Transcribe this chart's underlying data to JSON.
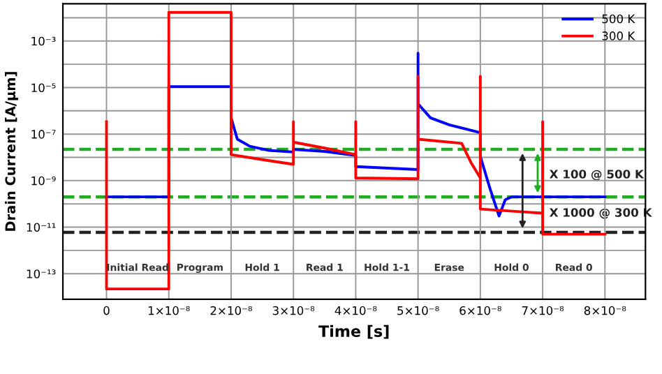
{
  "chart_data": {
    "type": "line",
    "xlabel": "Time [s]",
    "ylabel": "Drain Current [A/μm]",
    "log": "y",
    "xlim": [
      -7e-09,
      8.65e-08
    ],
    "ylim": [
      8e-15,
      0.04
    ],
    "xticks": [
      {
        "value": 0,
        "label": "0"
      },
      {
        "value": 1e-08,
        "label": "1×10⁻⁸"
      },
      {
        "value": 2e-08,
        "label": "2×10⁻⁸"
      },
      {
        "value": 3e-08,
        "label": "3×10⁻⁸"
      },
      {
        "value": 4e-08,
        "label": "4×10⁻⁸"
      },
      {
        "value": 5e-08,
        "label": "5×10⁻⁸"
      },
      {
        "value": 6e-08,
        "label": "6×10⁻⁸"
      },
      {
        "value": 7e-08,
        "label": "7×10⁻⁸"
      },
      {
        "value": 8e-08,
        "label": "8×10⁻⁸"
      }
    ],
    "yticks": [
      {
        "value": 1e-13,
        "label": "10⁻¹³"
      },
      {
        "value": 1e-12,
        "label": null
      },
      {
        "value": 1e-11,
        "label": "10⁻¹¹"
      },
      {
        "value": 1e-10,
        "label": null
      },
      {
        "value": 1e-09,
        "label": "10⁻⁹"
      },
      {
        "value": 1e-08,
        "label": null
      },
      {
        "value": 1e-07,
        "label": "10⁻⁷"
      },
      {
        "value": 1e-06,
        "label": null
      },
      {
        "value": 1e-05,
        "label": "10⁻⁵"
      },
      {
        "value": 0.0001,
        "label": null
      },
      {
        "value": 0.001,
        "label": "10⁻³"
      },
      {
        "value": 0.01,
        "label": null
      }
    ],
    "grid": true,
    "legend": "top right",
    "line_style": "solid",
    "series": [
      {
        "name": "500 K",
        "color": "#0000ff",
        "x": [
          0,
          1e-12,
          1e-08,
          1.0001e-08,
          2e-08,
          2.0001e-08,
          2.1e-08,
          2.3e-08,
          2.6e-08,
          3e-08,
          3.0001e-08,
          3.5e-08,
          4e-08,
          4.0001e-08,
          5e-08,
          5.0001e-08,
          5.0002e-08,
          5.2e-08,
          5.5e-08,
          6e-08,
          6.0001e-08,
          6.0002e-08,
          6.15e-08,
          6.3e-08,
          6.4e-08,
          6.5e-08,
          7e-08,
          8e-08
        ],
        "values": [
          2e-10,
          2e-10,
          2e-10,
          1.1e-05,
          1.1e-05,
          5e-07,
          6e-08,
          3e-08,
          2e-08,
          1.7e-08,
          2.2e-08,
          1.8e-08,
          1.2e-08,
          4e-09,
          3e-09,
          0.0003,
          2e-06,
          5e-07,
          2.5e-07,
          1.15e-07,
          1.1e-07,
          1.1e-08,
          5e-10,
          3e-11,
          1.5e-10,
          2e-10,
          2e-10,
          2e-10
        ]
      },
      {
        "name": "300 K",
        "color": "#ff0000",
        "x": [
          0,
          1e-12,
          1e-08,
          1.0001e-08,
          2e-08,
          2.0001e-08,
          2.5e-08,
          3e-08,
          3.0001e-08,
          3.0002e-08,
          3.5e-08,
          4e-08,
          4.0001e-08,
          4.0002e-08,
          5e-08,
          5.0001e-08,
          5.0002e-08,
          5.7e-08,
          5.85e-08,
          6e-08,
          6.0001e-08,
          6.0002e-08,
          7e-08,
          7.0001e-08,
          7.0002e-08,
          8e-08
        ],
        "values": [
          3.4e-07,
          2.2e-14,
          2.2e-14,
          0.017,
          0.017,
          1.3e-08,
          8e-09,
          5e-09,
          3.4e-07,
          4.5e-08,
          2.5e-08,
          1.3e-08,
          3.4e-07,
          1.3e-09,
          1.2e-09,
          3e-05,
          6e-08,
          4e-08,
          6e-09,
          1.3e-09,
          3e-05,
          6e-11,
          4e-11,
          3.4e-07,
          5e-12,
          5e-12
        ]
      }
    ],
    "ref_lines": [
      {
        "axis": "y",
        "value": 2.2e-08,
        "color": "#22aa22",
        "line_style": "dashed"
      },
      {
        "axis": "y",
        "value": 2e-10,
        "color": "#22aa22",
        "line_style": "dashed"
      },
      {
        "axis": "y",
        "value": 6e-12,
        "color": "#222222",
        "line_style": "dashed"
      }
    ],
    "annotations": [
      "Initial Read",
      "Program",
      "Hold 1",
      "Read 1",
      "Hold 1-1",
      "Erase",
      "Hold 0",
      "Read 0",
      "X 100 @ 500 K",
      "X 1000 @ 300 K"
    ]
  }
}
